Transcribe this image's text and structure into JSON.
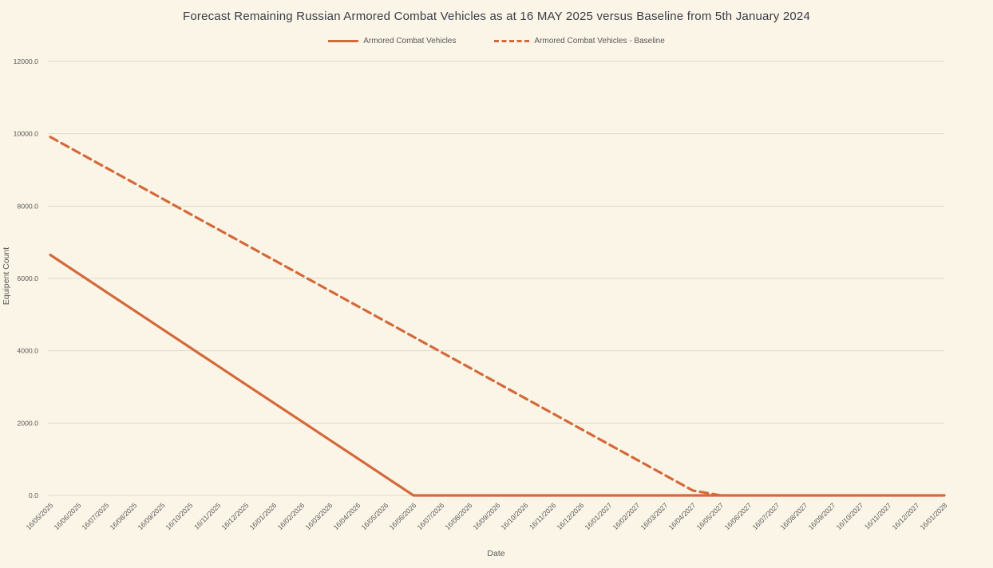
{
  "colors": {
    "background": "#FBF5E7",
    "accent_orange": "#D4693A",
    "gridline": "#DCD9CE",
    "title_text": "#3B3B47",
    "axis_text": "#595959"
  },
  "chart_data": {
    "type": "line",
    "title": "Forecast Remaining Russian Armored Combat Vehicles as at 16 MAY 2025 versus Baseline from 5th January 2024",
    "xlabel": "Date",
    "ylabel": "Equipent Count",
    "ylim": [
      0,
      12000
    ],
    "grid": "horizontal",
    "legend_position": "top-center",
    "y_ticks": [
      {
        "value": 0,
        "label": "0.0"
      },
      {
        "value": 2000,
        "label": "2000.0"
      },
      {
        "value": 4000,
        "label": "4000.0"
      },
      {
        "value": 6000,
        "label": "6000.0"
      },
      {
        "value": 8000,
        "label": "8000.0"
      },
      {
        "value": 10000,
        "label": "10000.0"
      },
      {
        "value": 12000,
        "label": "12000.0"
      }
    ],
    "categories": [
      "16/05/2025",
      "16/06/2025",
      "16/07/2025",
      "16/08/2025",
      "16/09/2025",
      "16/10/2025",
      "16/11/2025",
      "16/12/2025",
      "16/01/2026",
      "16/02/2026",
      "16/03/2026",
      "16/04/2026",
      "16/05/2026",
      "16/06/2026",
      "16/07/2026",
      "16/08/2026",
      "16/09/2026",
      "16/10/2026",
      "16/11/2026",
      "16/12/2026",
      "16/01/2027",
      "16/02/2027",
      "16/03/2027",
      "16/04/2027",
      "16/05/2027",
      "16/06/2027",
      "16/07/2027",
      "16/08/2027",
      "16/09/2027",
      "16/10/2027",
      "16/11/2027",
      "16/12/2027",
      "16/01/2028"
    ],
    "series": [
      {
        "name": "Armored Combat Vehicles",
        "line_style": "solid",
        "values": [
          6650.0,
          6138.5,
          5626.9,
          5115.4,
          4603.8,
          4092.3,
          3580.8,
          3069.2,
          2557.7,
          2046.2,
          1534.6,
          1023.1,
          511.5,
          0.0,
          0.0,
          0.0,
          0.0,
          0.0,
          0.0,
          0.0,
          0.0,
          0.0,
          0.0,
          0.0,
          0.0,
          0.0,
          0.0,
          0.0,
          0.0,
          0.0,
          0.0,
          0.0,
          0.0
        ]
      },
      {
        "name": "Armored Combat Vehicles - Baseline",
        "line_style": "dashed",
        "values": [
          9910,
          9485,
          9060,
          8635,
          8210,
          7785,
          7360,
          6935,
          6510,
          6085,
          5660,
          5235,
          4810,
          4385,
          3960,
          3535,
          3110,
          2685,
          2260,
          1835,
          1410,
          985,
          560,
          135,
          0,
          null,
          null,
          null,
          null,
          null,
          null,
          null,
          null
        ]
      }
    ]
  }
}
